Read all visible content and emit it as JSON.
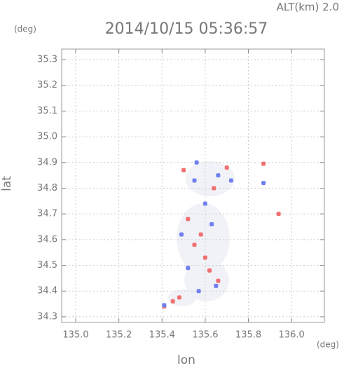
{
  "chart_data": {
    "type": "scatter",
    "title": "2014/10/15 05:36:57",
    "header_label": "ALT(km)",
    "header_value": "2.0",
    "y_unit": "(deg)",
    "x_unit": "(deg)",
    "x_label": "lon",
    "y_label": "lat",
    "xlim": [
      134.935,
      136.152
    ],
    "ylim": [
      34.278,
      35.341
    ],
    "xticks": [
      {
        "value": 135,
        "label": "135.0"
      },
      135.2,
      135.4,
      135.6,
      135.8,
      {
        "value": 136,
        "label": "136.0"
      }
    ],
    "yticks": [
      34.3,
      34.4,
      34.5,
      34.6,
      34.7,
      34.8,
      34.9,
      {
        "value": 35,
        "label": "35.0"
      },
      35.1,
      35.2,
      35.3
    ],
    "grid": true,
    "series": [
      {
        "color": "#f07070",
        "x": [
          135.94,
          135.87,
          135.41,
          135.45,
          135.48,
          135.64,
          135.55,
          135.62,
          135.66,
          135.52,
          135.58,
          135.6,
          135.7,
          135.5
        ],
        "values": [
          34.7,
          34.895,
          34.34,
          34.36,
          34.375,
          34.8,
          34.58,
          34.48,
          34.44,
          34.68,
          34.62,
          34.53,
          34.88,
          34.87
        ]
      },
      {
        "color": "#7080f0",
        "x": [
          135.41,
          135.56,
          135.66,
          135.49,
          135.63,
          135.57,
          135.65,
          135.52,
          135.6,
          135.87,
          135.72,
          135.55
        ],
        "values": [
          34.345,
          34.9,
          34.85,
          34.62,
          34.66,
          34.4,
          34.42,
          34.49,
          34.74,
          34.82,
          34.83,
          34.83
        ]
      }
    ]
  }
}
